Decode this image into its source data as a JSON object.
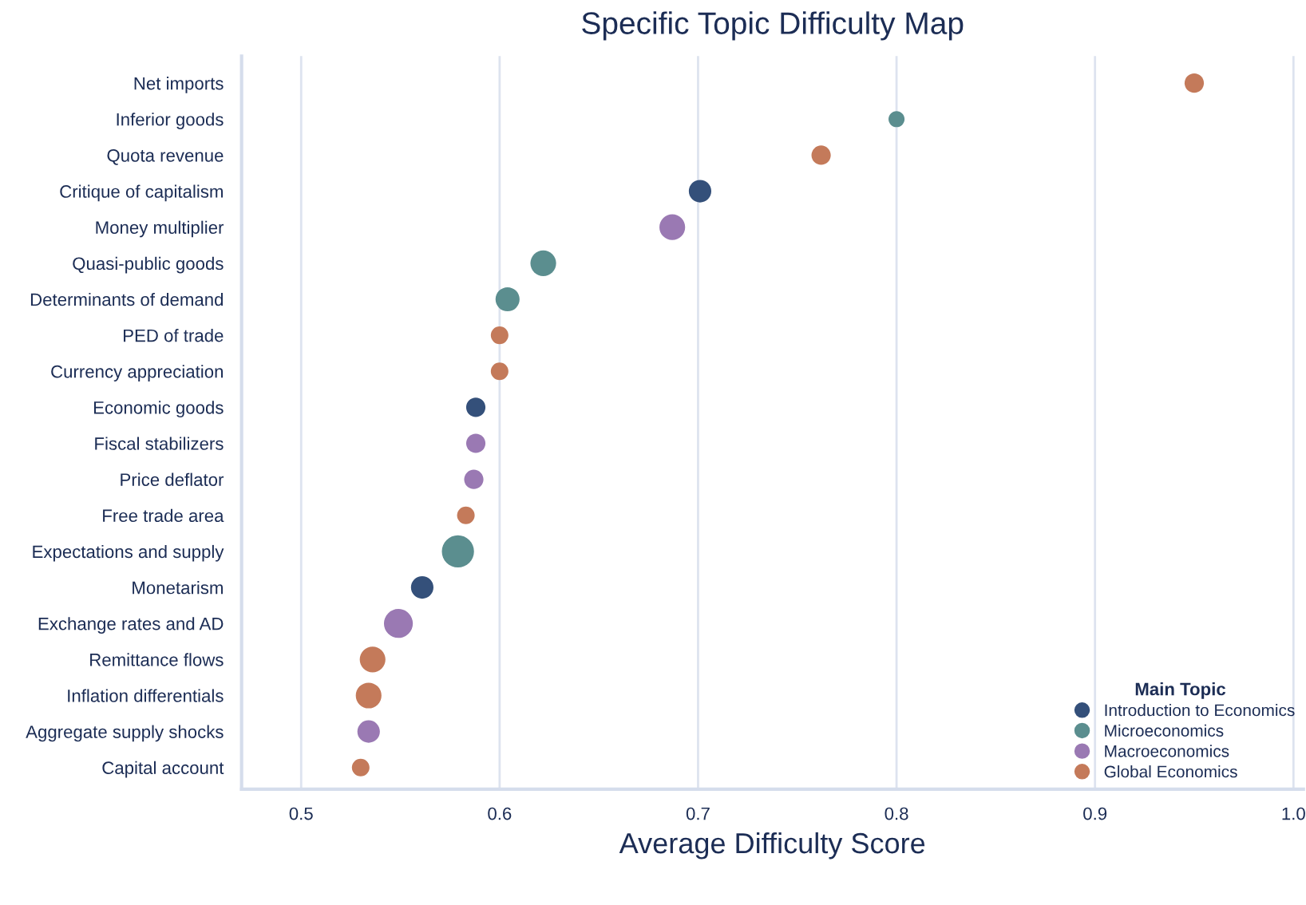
{
  "chart_data": {
    "type": "bubble",
    "title": "Specific Topic Difficulty Map",
    "xlabel": "Average Difficulty Score",
    "orientation": "horizontal",
    "legend_title": "Main Topic",
    "legend": "bottom right",
    "grid": "x",
    "categories": [
      "Net imports",
      "Inferior goods",
      "Quota revenue",
      "Critique of capitalism",
      "Money multiplier",
      "Quasi-public goods",
      "Determinants of demand",
      "PED of trade",
      "Currency appreciation",
      "Economic goods",
      "Fiscal stabilizers",
      "Price deflator",
      "Free trade area",
      "Expectations and supply",
      "Monetarism",
      "Exchange rates and AD",
      "Remittance flows",
      "Inflation differentials",
      "Aggregate supply shocks",
      "Capital account"
    ],
    "xlim": [
      0.47,
      1.005
    ],
    "xticks": [
      0.5,
      0.6,
      0.7,
      0.8,
      0.9,
      {
        "value": 1,
        "label": "1.0"
      }
    ],
    "series": [
      {
        "name": "Introduction to Economics",
        "color": "#34507a",
        "values": [
          null,
          null,
          null,
          0.701,
          null,
          null,
          null,
          null,
          null,
          0.588,
          null,
          null,
          null,
          null,
          0.561,
          null,
          null,
          null,
          null,
          null
        ],
        "sizes": [
          null,
          null,
          null,
          0.49,
          null,
          null,
          null,
          null,
          null,
          0.36,
          null,
          null,
          null,
          null,
          0.49,
          null,
          null,
          null,
          null,
          null
        ]
      },
      {
        "name": "Microeconomics",
        "color": "#5b8e8f",
        "values": [
          null,
          0.8,
          null,
          null,
          null,
          0.622,
          0.604,
          null,
          null,
          null,
          null,
          null,
          null,
          0.579,
          null,
          null,
          null,
          null,
          null,
          null
        ],
        "sizes": [
          null,
          0.25,
          null,
          null,
          null,
          0.64,
          0.56,
          null,
          null,
          null,
          null,
          null,
          null,
          1,
          null,
          null,
          null,
          null,
          null,
          null
        ]
      },
      {
        "name": "Macroeconomics",
        "color": "#9a79b3",
        "values": [
          null,
          null,
          null,
          null,
          0.687,
          null,
          null,
          null,
          null,
          null,
          0.588,
          0.587,
          null,
          null,
          null,
          0.549,
          null,
          null,
          0.534,
          null
        ],
        "sizes": [
          null,
          null,
          null,
          null,
          0.64,
          null,
          null,
          null,
          null,
          null,
          0.36,
          0.36,
          null,
          null,
          null,
          0.81,
          null,
          null,
          0.49,
          null
        ]
      },
      {
        "name": "Global Economics",
        "color": "#c47a5a",
        "values": [
          0.95,
          null,
          0.762,
          null,
          null,
          null,
          null,
          0.6,
          0.6,
          null,
          null,
          null,
          0.583,
          null,
          null,
          null,
          0.536,
          0.534,
          null,
          0.53
        ],
        "sizes": [
          0.36,
          null,
          0.36,
          null,
          null,
          null,
          null,
          0.3,
          0.3,
          null,
          null,
          null,
          0.3,
          null,
          null,
          null,
          0.64,
          0.64,
          null,
          0.3
        ]
      }
    ]
  }
}
